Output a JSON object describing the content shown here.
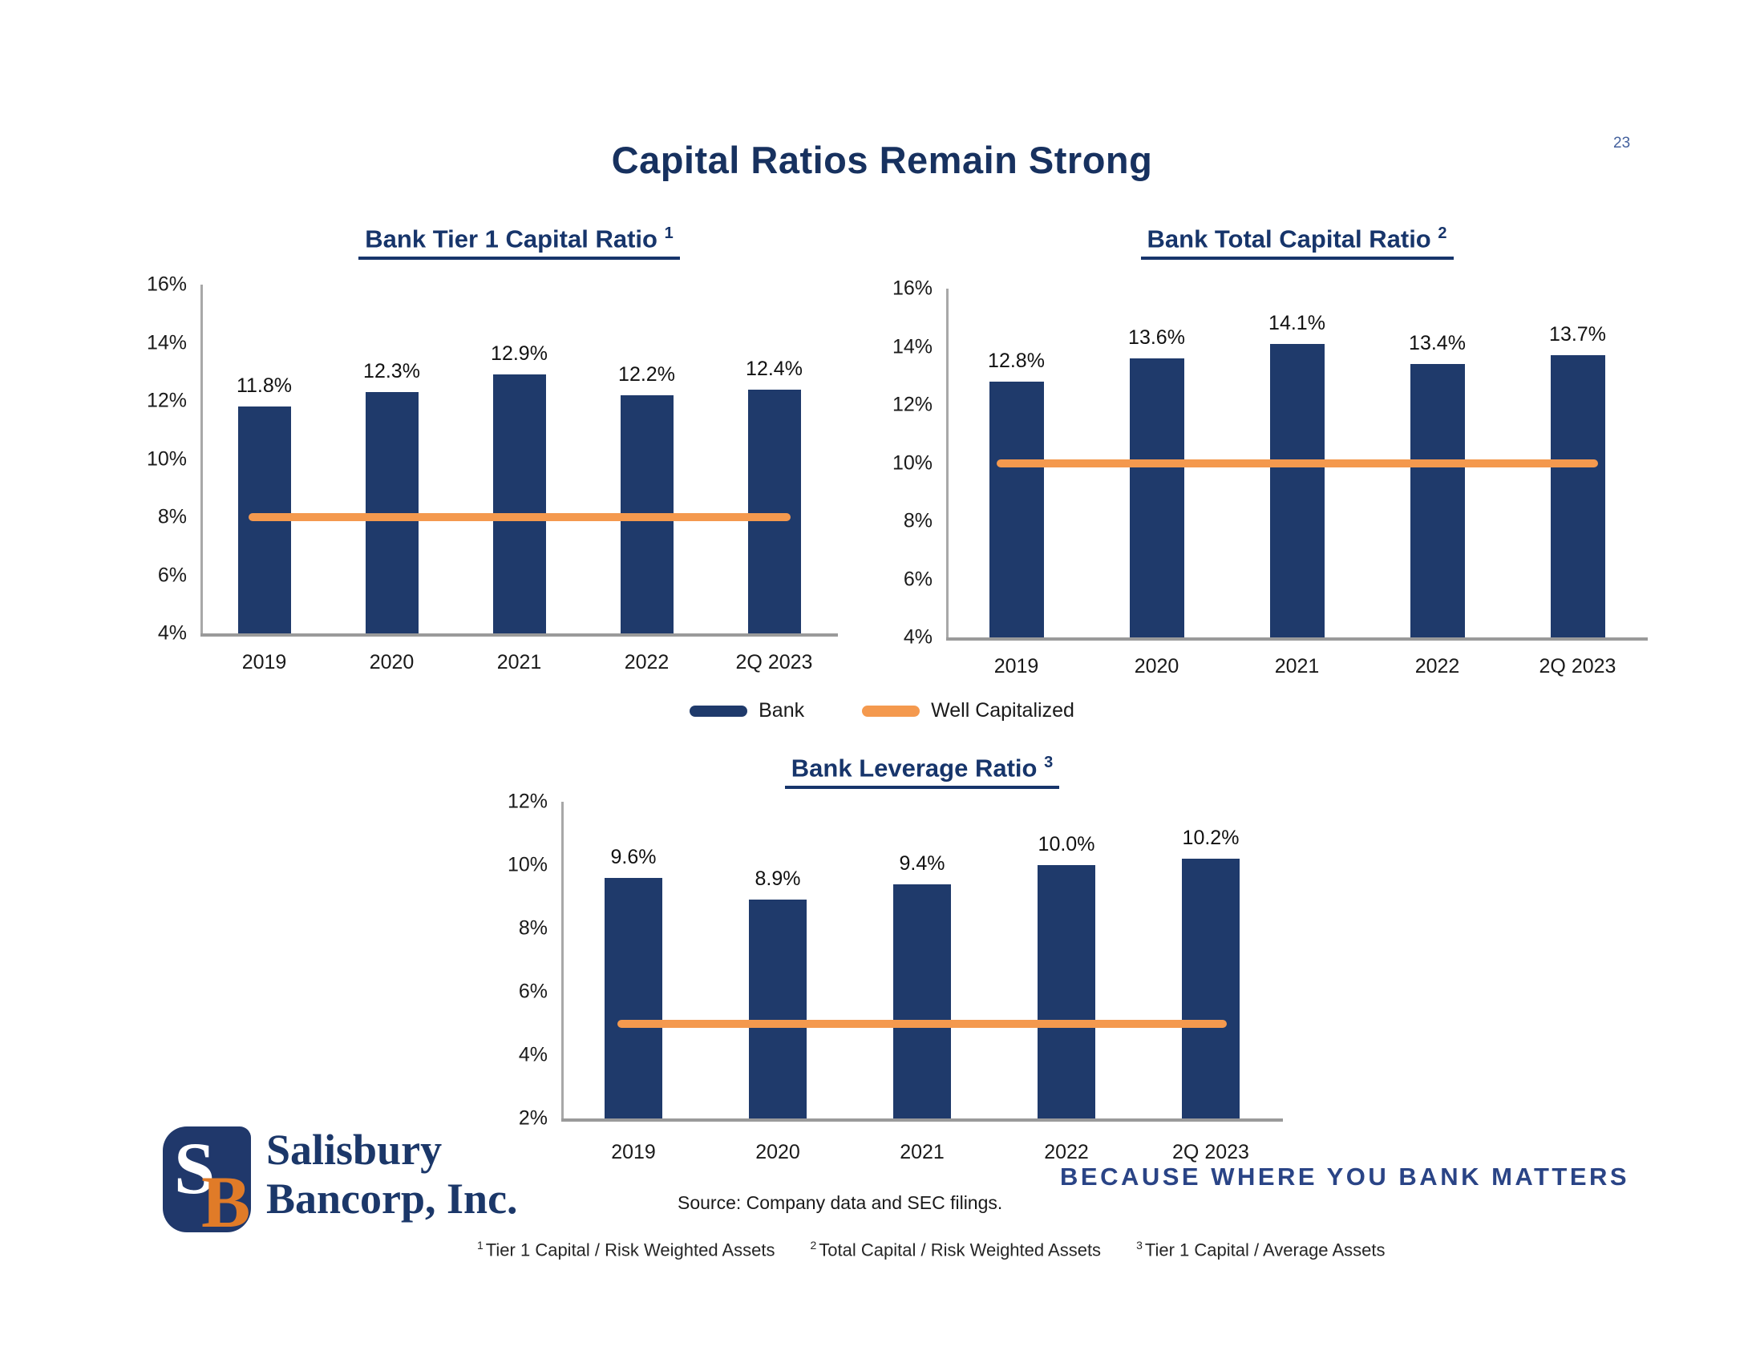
{
  "page": {
    "title": "Capital Ratios Remain Strong",
    "page_number": "23"
  },
  "colors": {
    "bar_navy": "#1f3a6b",
    "line_orange": "#f4994e",
    "title_navy": "#17356b",
    "logo_navy": "#20386b",
    "logo_orange": "#e07b28",
    "axis_gray": "#a8a8a8"
  },
  "legend": {
    "bank_label": "Bank",
    "well_capitalized_label": "Well Capitalized"
  },
  "chart_data": [
    {
      "type": "bar",
      "title": "Bank Tier 1 Capital Ratio",
      "title_superscript": "1",
      "categories": [
        "2019",
        "2020",
        "2021",
        "2022",
        "2Q 2023"
      ],
      "series": [
        {
          "name": "Bank",
          "type": "bar",
          "values": [
            11.8,
            12.3,
            12.9,
            12.2,
            12.4
          ],
          "labels": [
            "11.8%",
            "12.3%",
            "12.9%",
            "12.2%",
            "12.4%"
          ]
        },
        {
          "name": "Well Capitalized",
          "type": "line",
          "value": 8.0
        }
      ],
      "ylim": [
        4,
        16
      ],
      "ytick_step": 2,
      "ytick_suffix": "%",
      "grid": false,
      "legend_position": "shared-below"
    },
    {
      "type": "bar",
      "title": "Bank Total Capital Ratio",
      "title_superscript": "2",
      "categories": [
        "2019",
        "2020",
        "2021",
        "2022",
        "2Q 2023"
      ],
      "series": [
        {
          "name": "Bank",
          "type": "bar",
          "values": [
            12.8,
            13.6,
            14.1,
            13.4,
            13.7
          ],
          "labels": [
            "12.8%",
            "13.6%",
            "14.1%",
            "13.4%",
            "13.7%"
          ]
        },
        {
          "name": "Well Capitalized",
          "type": "line",
          "value": 10.0
        }
      ],
      "ylim": [
        4,
        16
      ],
      "ytick_step": 2,
      "ytick_suffix": "%",
      "grid": false,
      "legend_position": "shared-below"
    },
    {
      "type": "bar",
      "title": "Bank Leverage Ratio",
      "title_superscript": "3",
      "categories": [
        "2019",
        "2020",
        "2021",
        "2022",
        "2Q 2023"
      ],
      "series": [
        {
          "name": "Bank",
          "type": "bar",
          "values": [
            9.6,
            8.9,
            9.4,
            10.0,
            10.2
          ],
          "labels": [
            "9.6%",
            "8.9%",
            "9.4%",
            "10.0%",
            "10.2%"
          ]
        },
        {
          "name": "Well Capitalized",
          "type": "line",
          "value": 5.0
        }
      ],
      "ylim": [
        2,
        12
      ],
      "ytick_step": 2,
      "ytick_suffix": "%",
      "grid": false,
      "legend_position": "shared-below"
    }
  ],
  "footer": {
    "logo": {
      "letter_s": "S",
      "letter_b": "B",
      "company_line1": "Salisbury",
      "company_line2": "Bancorp, Inc."
    },
    "source": "Source: Company data and SEC filings.",
    "tagline": "BECAUSE WHERE YOU BANK MATTERS",
    "footnotes": [
      {
        "sup": "1",
        "text": "Tier 1 Capital / Risk Weighted Assets"
      },
      {
        "sup": "2",
        "text": "Total Capital / Risk Weighted Assets"
      },
      {
        "sup": "3",
        "text": "Tier 1 Capital / Average Assets"
      }
    ]
  }
}
